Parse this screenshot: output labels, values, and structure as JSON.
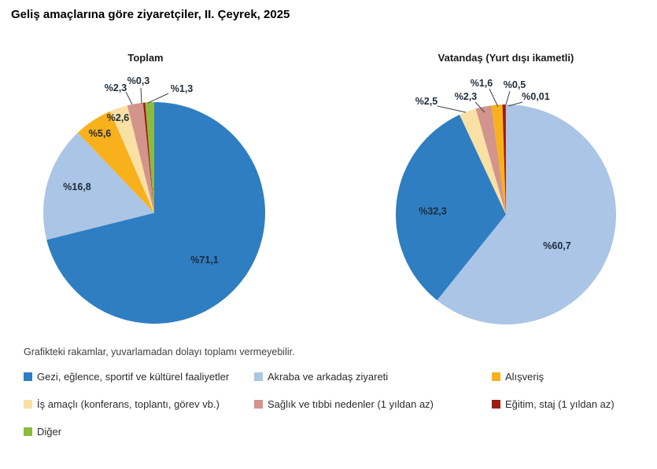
{
  "page": {
    "title": "Geliş amaçlarına göre ziyaretçiler, II. Çeyrek, 2025"
  },
  "note": "Grafikteki rakamlar, yuvarlamadan dolayı toplamı vermeyebilir.",
  "colors": {
    "gezi": "#2E7EC1",
    "akraba": "#AAC5E5",
    "alisveris": "#F8B11C",
    "is_amacli": "#F9E0A4",
    "saglik": "#D2948B",
    "egitim": "#9E1B12",
    "diger": "#8ABB3F",
    "label_text": "#1E2B3A",
    "leader_line": "#404040"
  },
  "chart_data": [
    {
      "type": "pie",
      "title": "Toplam",
      "unit": "percent",
      "start_angle": "12 o'clock, clockwise",
      "slices": [
        {
          "category": "Gezi, eğlence, sportif ve kültürel faaliyetler",
          "key": "gezi",
          "value": 71.1,
          "label": "%71,1"
        },
        {
          "category": "Akraba ve arkadaş ziyareti",
          "key": "akraba",
          "value": 16.8,
          "label": "%16,8"
        },
        {
          "category": "Alışveriş",
          "key": "alisveris",
          "value": 5.6,
          "label": "%5,6"
        },
        {
          "category": "İş amaçlı (konferans, toplantı, görev vb.)",
          "key": "is_amacli",
          "value": 2.6,
          "label": "%2,6"
        },
        {
          "category": "Sağlık ve tıbbi nedenler (1 yıldan az)",
          "key": "saglik",
          "value": 2.3,
          "label": "%2,3"
        },
        {
          "category": "Eğitim, staj (1 yıldan az)",
          "key": "egitim",
          "value": 0.3,
          "label": "%0,3"
        },
        {
          "category": "Diğer",
          "key": "diger",
          "value": 1.3,
          "label": "%1,3"
        }
      ]
    },
    {
      "type": "pie",
      "title": "Vatandaş (Yurt dışı ikametli)",
      "unit": "percent",
      "start_angle": "12 o'clock, clockwise",
      "slices": [
        {
          "category": "Akraba ve arkadaş ziyareti",
          "key": "akraba",
          "value": 60.7,
          "label": "%60,7"
        },
        {
          "category": "Gezi, eğlence, sportif ve kültürel faaliyetler",
          "key": "gezi",
          "value": 32.3,
          "label": "%32,3"
        },
        {
          "category": "İş amaçlı (konferans, toplantı, görev vb.)",
          "key": "is_amacli",
          "value": 2.5,
          "label": "%2,5"
        },
        {
          "category": "Sağlık ve tıbbi nedenler (1 yıldan az)",
          "key": "saglik",
          "value": 2.3,
          "label": "%2,3"
        },
        {
          "category": "Alışveriş",
          "key": "alisveris",
          "value": 1.6,
          "label": "%1,6"
        },
        {
          "category": "Eğitim, staj (1 yıldan az)",
          "key": "egitim",
          "value": 0.5,
          "label": "%0,5"
        },
        {
          "category": "Diğer",
          "key": "diger",
          "value": 0.01,
          "label": "%0,01"
        }
      ]
    }
  ],
  "legend": {
    "items": [
      {
        "label": "Gezi, eğlence, sportif ve kültürel faaliyetler",
        "color": "gezi"
      },
      {
        "label": "Akraba ve arkadaş ziyareti",
        "color": "akraba"
      },
      {
        "label": "Alışveriş",
        "color": "alisveris"
      },
      {
        "label": "İş amaçlı (konferans, toplantı, görev vb.)",
        "color": "is_amacli"
      },
      {
        "label": "Sağlık ve tıbbi nedenler (1 yıldan az)",
        "color": "saglik"
      },
      {
        "label": "Eğitim, staj (1 yıldan az)",
        "color": "egitim"
      },
      {
        "label": "Diğer",
        "color": "diger"
      }
    ]
  }
}
